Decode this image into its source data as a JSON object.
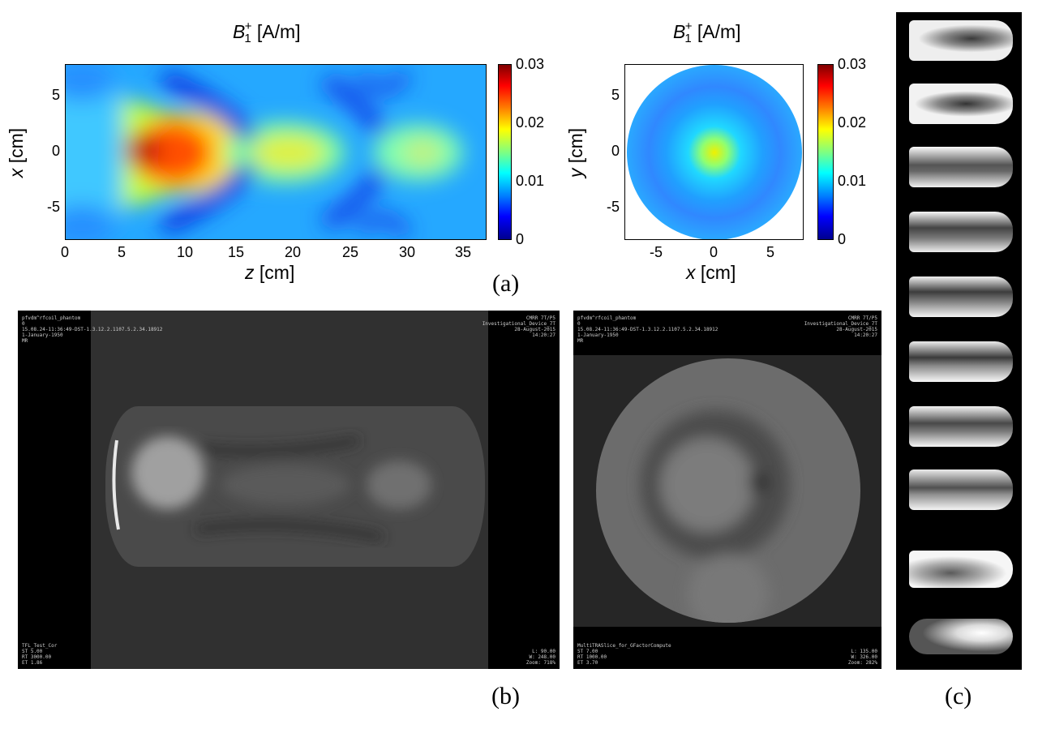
{
  "panel_a": {
    "left_plot": {
      "title_main": "B",
      "title_sub": "1",
      "title_sup": "+",
      "title_unit": " [A/m]",
      "xlabel_var": "z",
      "xlabel_unit": " [cm]",
      "ylabel_var": "x",
      "ylabel_unit": " [cm]",
      "xticks": [
        "0",
        "5",
        "10",
        "15",
        "20",
        "25",
        "30",
        "35"
      ],
      "yticks": [
        "5",
        "0",
        "-5"
      ],
      "colorbar_ticks": [
        "0.03",
        "0.02",
        "0.01",
        "0"
      ]
    },
    "right_plot": {
      "title_main": "B",
      "title_sub": "1",
      "title_sup": "+",
      "title_unit": " [A/m]",
      "xlabel_var": "x",
      "xlabel_unit": " [cm]",
      "ylabel_var": "y",
      "ylabel_unit": " [cm]",
      "xticks": [
        "-5",
        "0",
        "5"
      ],
      "yticks": [
        "5",
        "0",
        "-5"
      ],
      "colorbar_ticks": [
        "0.03",
        "0.02",
        "0.01",
        "0"
      ]
    },
    "label": "(a)"
  },
  "panel_b": {
    "label": "(b)",
    "left_scan": {
      "top_left": [
        "pfvdm^rfcoil_phantom",
        "0",
        "15.08.24-11:36:49-DST-1.3.12.2.1107.5.2.34.18912",
        "1-January-1950",
        "MR"
      ],
      "top_right": [
        "CMRR 7T/P5",
        "Investigational_Device_7T",
        "28-August-2015",
        "14:20:27"
      ],
      "bottom_left": [
        "TFL_Test_Cor",
        "ST 5.00",
        "RT 3000.00",
        "ET 1.86"
      ],
      "bottom_right": [
        "L: 90.00",
        "W: 248.00",
        "Zoom: 718%"
      ]
    },
    "right_scan": {
      "top_left": [
        "pfvdm^rfcoil_phantom",
        "0",
        "15.08.24-11:36:49-DST-1.3.12.2.1107.5.2.34.18912",
        "1-January-1950",
        "MR"
      ],
      "top_right": [
        "CMRR 7T/P5",
        "Investigational_Device_7T",
        "28-August-2015",
        "14:20:27"
      ],
      "bottom_left": [
        "MultiTRASlice_for_GFactorCompute",
        "ST 7.00",
        "RT 1000.00",
        "ET 3.70"
      ],
      "bottom_right": [
        "L: 135.00",
        "W: 326.00",
        "Zoom: 282%"
      ]
    }
  },
  "panel_c": {
    "label": "(c)",
    "slice_count": 10
  }
}
